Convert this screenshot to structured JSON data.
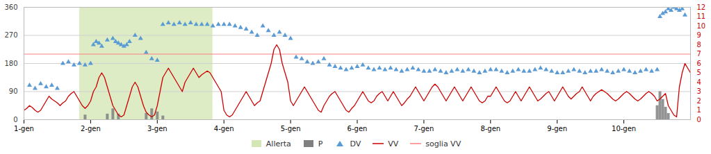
{
  "chart_data": {
    "type": "combo",
    "xlim": [
      0,
      240
    ],
    "xticks": [
      {
        "value": 0,
        "label": "1-gen"
      },
      {
        "value": 24,
        "label": "2-gen"
      },
      {
        "value": 48,
        "label": "3-gen"
      },
      {
        "value": 72,
        "label": "4-gen"
      },
      {
        "value": 96,
        "label": "5-gen"
      },
      {
        "value": 120,
        "label": "6-gen"
      },
      {
        "value": 144,
        "label": "7-gen"
      },
      {
        "value": 168,
        "label": "8-gen"
      },
      {
        "value": 192,
        "label": "9-gen"
      },
      {
        "value": 216,
        "label": "10-gen"
      }
    ],
    "ylim": [
      0,
      360
    ],
    "yticks": [
      0,
      90,
      180,
      270,
      360
    ],
    "y2lim": [
      0,
      12
    ],
    "y2ticks": [
      0,
      1,
      2,
      3,
      4,
      5,
      6,
      7,
      8,
      9,
      10,
      11,
      12
    ],
    "grid": true,
    "legend": "bottom",
    "series": [
      {
        "name": "Allerta",
        "type": "span",
        "color": "#90c040",
        "start": 20,
        "end": 68
      },
      {
        "name": "P",
        "type": "bar",
        "color": "#808080",
        "x": [
          22,
          30,
          32,
          34,
          44,
          46,
          48,
          50,
          228,
          229,
          230,
          231,
          232
        ],
        "values": [
          15,
          18,
          35,
          18,
          20,
          35,
          25,
          12,
          45,
          90,
          65,
          40,
          20
        ]
      },
      {
        "name": "DV",
        "type": "scatter",
        "marker": "triangle",
        "color": "#5b9bd5",
        "x": [
          2,
          4,
          6,
          8,
          10,
          12,
          14,
          16,
          18,
          20,
          22,
          24,
          25,
          26,
          27,
          28,
          30,
          32,
          33,
          34,
          35,
          36,
          37,
          38,
          40,
          42,
          44,
          46,
          48,
          50,
          52,
          54,
          56,
          58,
          60,
          62,
          64,
          66,
          68,
          70,
          72,
          74,
          76,
          78,
          80,
          82,
          84,
          86,
          88,
          90,
          92,
          94,
          96,
          98,
          100,
          102,
          104,
          106,
          108,
          110,
          112,
          114,
          116,
          118,
          120,
          122,
          124,
          126,
          128,
          130,
          132,
          134,
          136,
          138,
          140,
          142,
          144,
          146,
          148,
          150,
          152,
          154,
          156,
          158,
          160,
          162,
          164,
          166,
          168,
          170,
          172,
          174,
          176,
          178,
          180,
          182,
          184,
          186,
          188,
          190,
          192,
          194,
          196,
          198,
          200,
          202,
          204,
          206,
          208,
          210,
          212,
          214,
          216,
          218,
          220,
          222,
          224,
          226,
          228,
          229,
          230,
          231,
          232,
          233,
          234,
          235,
          236,
          237,
          238
        ],
        "values": [
          110,
          100,
          115,
          105,
          110,
          100,
          180,
          185,
          175,
          180,
          175,
          180,
          240,
          250,
          245,
          235,
          255,
          260,
          250,
          245,
          240,
          235,
          240,
          250,
          270,
          260,
          215,
          195,
          190,
          305,
          310,
          305,
          310,
          305,
          310,
          305,
          305,
          305,
          300,
          305,
          305,
          305,
          300,
          295,
          290,
          280,
          270,
          300,
          285,
          270,
          280,
          270,
          260,
          200,
          195,
          185,
          180,
          185,
          195,
          175,
          170,
          165,
          160,
          165,
          170,
          175,
          165,
          160,
          165,
          160,
          165,
          160,
          155,
          160,
          165,
          160,
          155,
          155,
          160,
          155,
          150,
          155,
          160,
          155,
          160,
          155,
          150,
          155,
          160,
          160,
          155,
          150,
          155,
          160,
          155,
          155,
          160,
          165,
          160,
          155,
          150,
          150,
          155,
          160,
          155,
          150,
          155,
          155,
          160,
          155,
          150,
          155,
          160,
          155,
          150,
          155,
          160,
          155,
          160,
          330,
          340,
          345,
          355,
          350,
          360,
          355,
          350,
          355,
          335
        ]
      },
      {
        "name": "VV",
        "type": "line",
        "axis": "y2",
        "color": "#cc0000",
        "x": [
          0,
          1,
          2,
          3,
          4,
          5,
          6,
          7,
          8,
          9,
          10,
          11,
          12,
          13,
          14,
          15,
          16,
          17,
          18,
          19,
          20,
          21,
          22,
          23,
          24,
          25,
          26,
          27,
          28,
          29,
          30,
          31,
          32,
          33,
          34,
          35,
          36,
          37,
          38,
          39,
          40,
          41,
          42,
          43,
          44,
          45,
          46,
          47,
          48,
          49,
          50,
          51,
          52,
          53,
          54,
          55,
          56,
          57,
          58,
          59,
          60,
          61,
          62,
          63,
          64,
          65,
          66,
          67,
          68,
          69,
          70,
          71,
          72,
          73,
          74,
          75,
          76,
          77,
          78,
          79,
          80,
          81,
          82,
          83,
          84,
          85,
          86,
          87,
          88,
          89,
          90,
          91,
          92,
          93,
          94,
          95,
          96,
          97,
          98,
          99,
          100,
          101,
          102,
          103,
          104,
          105,
          106,
          107,
          108,
          109,
          110,
          111,
          112,
          113,
          114,
          115,
          116,
          117,
          118,
          119,
          120,
          121,
          122,
          123,
          124,
          125,
          126,
          127,
          128,
          129,
          130,
          131,
          132,
          133,
          134,
          135,
          136,
          137,
          138,
          139,
          140,
          141,
          142,
          143,
          144,
          145,
          146,
          147,
          148,
          149,
          150,
          151,
          152,
          153,
          154,
          155,
          156,
          157,
          158,
          159,
          160,
          161,
          162,
          163,
          164,
          165,
          166,
          167,
          168,
          169,
          170,
          171,
          172,
          173,
          174,
          175,
          176,
          177,
          178,
          179,
          180,
          181,
          182,
          183,
          184,
          185,
          186,
          187,
          188,
          189,
          190,
          191,
          192,
          193,
          194,
          195,
          196,
          197,
          198,
          199,
          200,
          201,
          202,
          203,
          204,
          205,
          206,
          207,
          208,
          209,
          210,
          211,
          212,
          213,
          214,
          215,
          216,
          217,
          218,
          219,
          220,
          221,
          222,
          223,
          224,
          225,
          226,
          227,
          228,
          229,
          230,
          231,
          232,
          233,
          234,
          235,
          236,
          237,
          238,
          239,
          240
        ],
        "values": [
          1.0,
          1.2,
          1.5,
          1.3,
          1.0,
          0.8,
          1.0,
          1.5,
          2.0,
          2.5,
          2.2,
          2.0,
          1.8,
          1.5,
          1.8,
          2.0,
          2.5,
          2.8,
          3.0,
          2.5,
          2.0,
          1.5,
          1.2,
          1.5,
          2.0,
          3.0,
          3.5,
          4.5,
          5.0,
          4.5,
          3.5,
          2.5,
          1.5,
          1.0,
          0.5,
          0.3,
          0.5,
          1.5,
          2.5,
          3.5,
          4.0,
          3.5,
          2.5,
          1.5,
          0.8,
          0.5,
          0.3,
          0.5,
          1.5,
          3.0,
          4.5,
          5.0,
          5.5,
          5.0,
          4.5,
          4.0,
          3.5,
          3.0,
          4.0,
          4.5,
          5.0,
          5.5,
          5.0,
          4.5,
          4.8,
          5.0,
          5.2,
          5.0,
          4.5,
          4.0,
          3.5,
          3.0,
          1.0,
          0.5,
          0.3,
          0.5,
          1.0,
          1.5,
          2.0,
          2.5,
          3.0,
          2.5,
          2.0,
          1.5,
          1.8,
          2.0,
          3.0,
          4.0,
          5.0,
          6.0,
          7.5,
          8.0,
          7.5,
          6.0,
          5.0,
          4.0,
          2.0,
          1.5,
          2.0,
          2.5,
          3.0,
          3.5,
          3.0,
          2.5,
          2.0,
          1.5,
          1.0,
          0.8,
          1.5,
          2.0,
          2.5,
          2.8,
          3.0,
          2.5,
          2.0,
          1.5,
          1.0,
          0.8,
          1.2,
          1.5,
          2.0,
          2.5,
          3.0,
          2.5,
          2.0,
          1.8,
          2.0,
          2.5,
          2.8,
          3.0,
          2.5,
          2.0,
          2.5,
          3.0,
          2.5,
          2.0,
          1.5,
          1.8,
          2.2,
          2.5,
          3.0,
          3.5,
          3.0,
          2.5,
          2.0,
          2.5,
          3.0,
          3.5,
          3.8,
          3.5,
          3.0,
          2.5,
          2.0,
          2.5,
          3.0,
          3.5,
          3.0,
          2.5,
          2.0,
          2.5,
          3.0,
          3.5,
          3.0,
          2.5,
          2.0,
          1.8,
          2.0,
          2.5,
          2.5,
          3.0,
          3.5,
          3.0,
          2.5,
          2.0,
          1.8,
          2.0,
          2.5,
          3.0,
          2.5,
          2.0,
          2.5,
          3.0,
          3.5,
          3.0,
          2.5,
          2.0,
          2.2,
          2.5,
          2.8,
          3.0,
          2.5,
          2.0,
          2.5,
          3.0,
          3.5,
          3.0,
          2.5,
          2.2,
          2.5,
          2.8,
          3.0,
          3.5,
          3.0,
          2.5,
          2.0,
          2.5,
          2.8,
          3.0,
          3.2,
          3.0,
          2.8,
          2.5,
          2.2,
          2.0,
          2.2,
          2.5,
          2.8,
          3.0,
          2.8,
          2.5,
          2.2,
          2.0,
          2.2,
          2.5,
          2.8,
          3.0,
          2.8,
          2.5,
          2.0,
          2.2,
          2.5,
          2.8,
          1.5,
          1.0,
          0.5,
          0.3,
          3.5,
          5.0,
          6.0,
          5.5,
          5.0
        ]
      },
      {
        "name": "soglia VV",
        "type": "hline",
        "axis": "y2",
        "color": "#ff8080",
        "value": 7
      }
    ]
  }
}
